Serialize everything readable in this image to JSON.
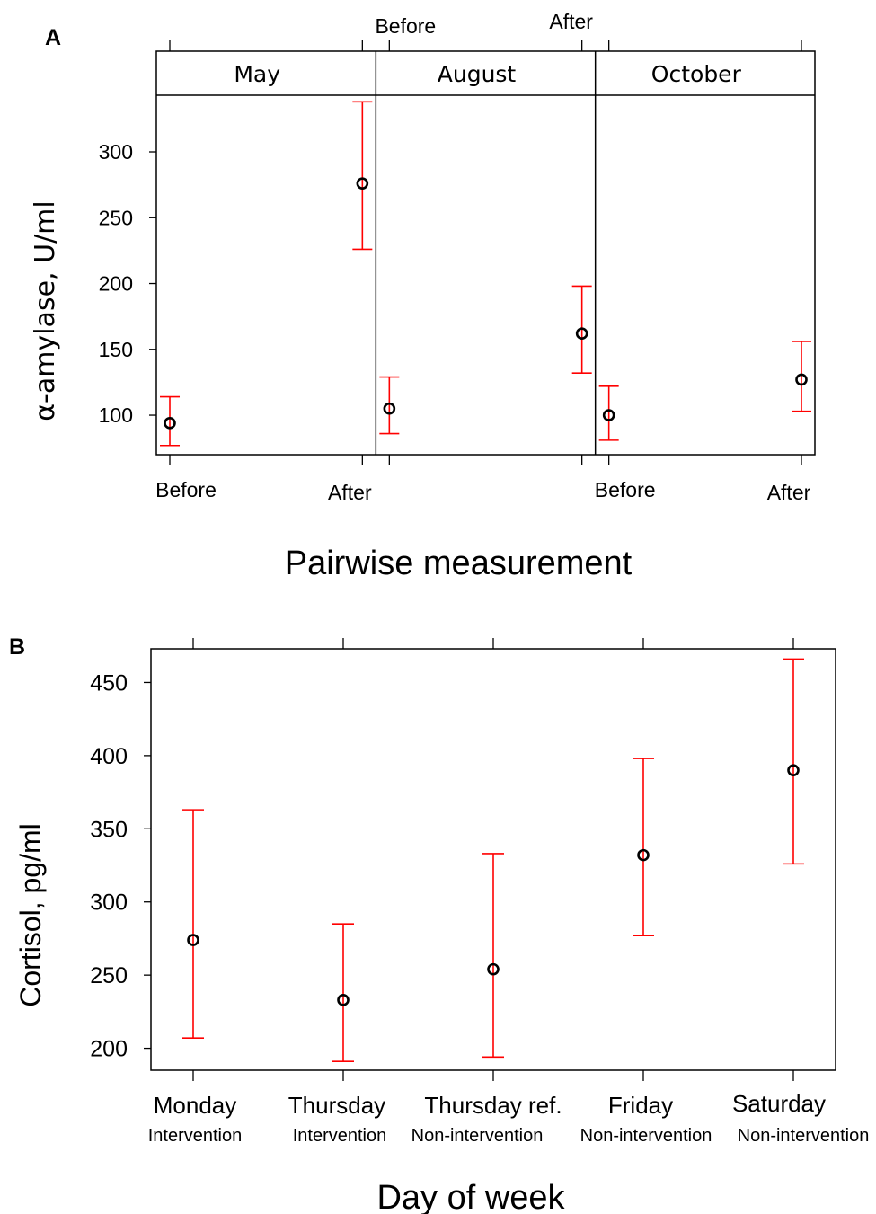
{
  "figure": {
    "panel_a_label": "A",
    "panel_b_label": "B"
  },
  "colors": {
    "error_bar": "#ff0000",
    "point": "#000000",
    "axis": "#000000"
  },
  "chart_data": [
    {
      "type": "scatter",
      "error_bars": true,
      "facet_variable": "month",
      "panels": [
        {
          "name": "May",
          "x": [
            "Before",
            "After"
          ],
          "mean": [
            94,
            276
          ],
          "lower": [
            77,
            226
          ],
          "upper": [
            114,
            338
          ]
        },
        {
          "name": "August",
          "x": [
            "Before",
            "After"
          ],
          "mean": [
            105,
            162
          ],
          "lower": [
            86,
            132
          ],
          "upper": [
            129,
            198
          ]
        },
        {
          "name": "October",
          "x": [
            "Before",
            "After"
          ],
          "mean": [
            100,
            127
          ],
          "lower": [
            81,
            103
          ],
          "upper": [
            122,
            156
          ]
        }
      ],
      "xlabel": "Pairwise measurement",
      "ylabel": "α-amylase, U/ml",
      "yticks": [
        100,
        150,
        200,
        250,
        300
      ],
      "ylim": [
        70,
        343
      ],
      "grid": false
    },
    {
      "type": "scatter",
      "error_bars": true,
      "categories": [
        "Monday",
        "Thursday",
        "Thursday ref.",
        "Friday",
        "Saturday"
      ],
      "sublabels": [
        "Intervention",
        "Intervention",
        "Non-intervention",
        "Non-intervention",
        "Non-intervention"
      ],
      "mean": [
        274,
        233,
        254,
        332,
        390
      ],
      "lower": [
        207,
        191,
        194,
        277,
        326
      ],
      "upper": [
        363,
        285,
        333,
        398,
        466
      ],
      "xlabel": "Day of week",
      "ylabel": "Cortisol, pg/ml",
      "yticks": [
        200,
        250,
        300,
        350,
        400,
        450
      ],
      "ylim": [
        185,
        473
      ],
      "grid": false
    }
  ]
}
